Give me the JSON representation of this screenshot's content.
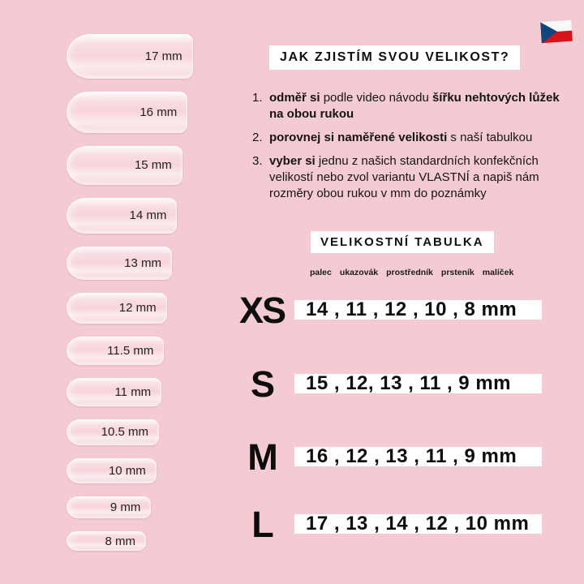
{
  "canvas": {
    "background_color": "#f5cbd3",
    "box_color": "#ffffff",
    "text_color": "#141414"
  },
  "flag": {
    "name": "czech-flag",
    "colors": {
      "white": "#f8f8f8",
      "red": "#d7141a",
      "blue": "#11457e"
    }
  },
  "heading": {
    "title": "JAK ZJISTÍM SVOU VELIKOST?"
  },
  "steps": [
    {
      "number": "1.",
      "lines": [
        [
          {
            "t": "odměř si ",
            "b": true
          },
          {
            "t": "podle video návodu ",
            "b": false
          },
          {
            "t": "šířku nehtových lůžek",
            "b": true
          }
        ],
        [
          {
            "t": "na obou rukou",
            "b": true
          }
        ]
      ]
    },
    {
      "number": "2.",
      "lines": [
        [
          {
            "t": "porovnej si naměřené velikosti ",
            "b": true
          },
          {
            "t": "s naší tabulkou",
            "b": false
          }
        ]
      ]
    },
    {
      "number": "3.",
      "lines": [
        [
          {
            "t": "vyber si ",
            "b": true
          },
          {
            "t": "jednu z našich standardních konfekčních",
            "b": false
          }
        ],
        [
          {
            "t": "velikostí nebo zvol variantu VLASTNÍ a napiš nám",
            "b": false
          }
        ],
        [
          {
            "t": "rozměry obou rukou v mm do poznámky",
            "b": false
          }
        ]
      ]
    }
  ],
  "nails": [
    {
      "label": "17 mm",
      "mm": 17
    },
    {
      "label": "16 mm",
      "mm": 16
    },
    {
      "label": "15 mm",
      "mm": 15
    },
    {
      "label": "14 mm",
      "mm": 14
    },
    {
      "label": "13 mm",
      "mm": 13
    },
    {
      "label": "12 mm",
      "mm": 12
    },
    {
      "label": "11.5 mm",
      "mm": 11.5
    },
    {
      "label": "11 mm",
      "mm": 11
    },
    {
      "label": "10.5 mm",
      "mm": 10.5
    },
    {
      "label": "10 mm",
      "mm": 10
    },
    {
      "label": "9 mm",
      "mm": 9
    },
    {
      "label": "8 mm",
      "mm": 8
    }
  ],
  "size_table": {
    "title": "VELIKOSTNÍ TABULKA",
    "finger_headers": [
      "palec",
      "ukazovák",
      "prostředník",
      "prsteník",
      "malíček"
    ],
    "rows": [
      {
        "size": "XS",
        "values": "14 , 11 , 12 , 10 , 8 mm"
      },
      {
        "size": "S",
        "values": "15 , 12, 13 , 11 , 9 mm"
      },
      {
        "size": "M",
        "values": "16 , 12 , 13 , 11 , 9 mm"
      },
      {
        "size": "L",
        "values": "17 , 13 , 14 , 12 , 10 mm"
      }
    ]
  }
}
